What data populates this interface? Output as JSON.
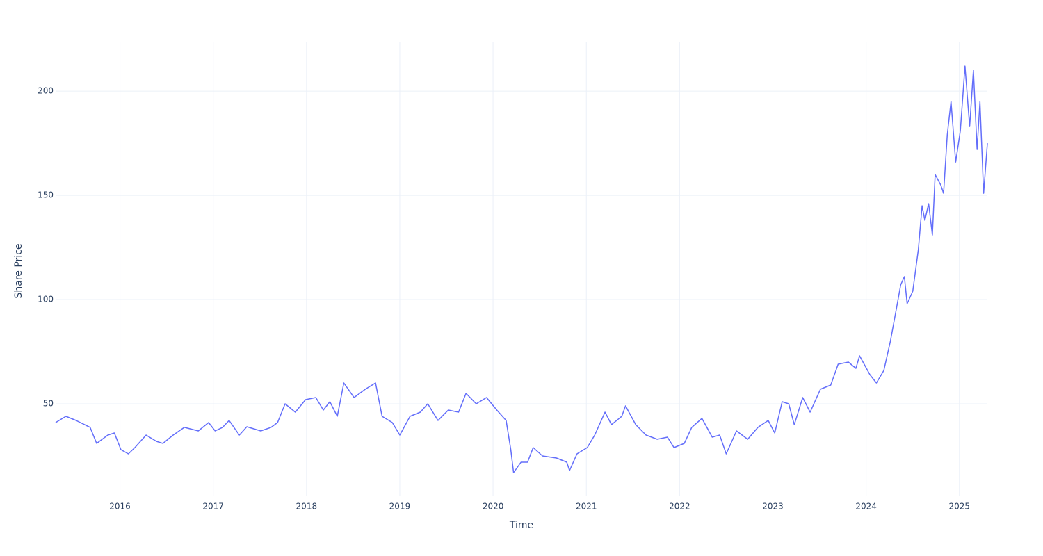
{
  "chart_data": {
    "type": "line",
    "x_label": "Time",
    "y_label": "Share Price",
    "x": [
      2015.31,
      2015.42,
      2015.53,
      2015.68,
      2015.75,
      2015.87,
      2015.94,
      2016.01,
      2016.09,
      2016.16,
      2016.28,
      2016.39,
      2016.46,
      2016.57,
      2016.69,
      2016.84,
      2016.95,
      2017.02,
      2017.1,
      2017.17,
      2017.28,
      2017.36,
      2017.51,
      2017.62,
      2017.69,
      2017.77,
      2017.88,
      2017.99,
      2018.1,
      2018.18,
      2018.25,
      2018.33,
      2018.4,
      2018.51,
      2018.63,
      2018.74,
      2018.81,
      2018.92,
      2019.0,
      2019.11,
      2019.22,
      2019.3,
      2019.41,
      2019.52,
      2019.63,
      2019.71,
      2019.82,
      2019.93,
      2020.04,
      2020.14,
      2020.19,
      2020.22,
      2020.3,
      2020.37,
      2020.43,
      2020.53,
      2020.68,
      2020.79,
      2020.82,
      2020.9,
      2021.01,
      2021.09,
      2021.2,
      2021.27,
      2021.38,
      2021.42,
      2021.53,
      2021.64,
      2021.76,
      2021.87,
      2021.94,
      2022.05,
      2022.13,
      2022.24,
      2022.35,
      2022.43,
      2022.5,
      2022.61,
      2022.73,
      2022.84,
      2022.95,
      2023.02,
      2023.1,
      2023.17,
      2023.23,
      2023.32,
      2023.4,
      2023.51,
      2023.62,
      2023.7,
      2023.81,
      2023.89,
      2023.93,
      2024.04,
      2024.11,
      2024.19,
      2024.26,
      2024.33,
      2024.37,
      2024.41,
      2024.44,
      2024.5,
      2024.56,
      2024.6,
      2024.63,
      2024.67,
      2024.71,
      2024.74,
      2024.8,
      2024.83,
      2024.87,
      2024.91,
      2024.96,
      2025.01,
      2025.06,
      2025.11,
      2025.15,
      2025.19,
      2025.22,
      2025.26,
      2025.3
    ],
    "series": [
      {
        "color": "#636efa",
        "values": [
          41,
          44,
          42,
          38.7,
          31,
          35,
          36,
          28,
          26,
          29,
          35,
          32,
          31,
          35,
          38.7,
          37,
          41,
          37,
          38.7,
          42,
          35,
          39,
          37,
          38.7,
          41,
          50,
          46,
          52,
          53,
          47,
          51,
          44,
          60,
          53,
          57,
          60,
          44,
          41,
          35,
          44,
          46,
          50,
          42,
          47,
          46,
          55,
          50,
          53,
          47,
          42,
          28,
          17,
          22,
          22,
          29,
          25,
          24,
          22,
          18,
          26,
          29,
          35,
          46,
          40,
          44,
          49,
          40,
          35,
          33,
          34,
          29,
          31,
          38.7,
          43,
          34,
          35,
          26,
          37,
          33,
          38.7,
          42,
          36,
          51,
          50,
          40,
          53,
          46,
          57,
          59,
          69,
          70,
          67,
          73,
          64,
          60,
          66,
          80,
          97,
          107,
          111,
          98,
          104,
          124,
          145,
          138,
          146,
          131,
          160,
          155,
          151,
          179,
          195,
          166,
          181,
          212,
          183,
          210,
          172,
          195,
          151,
          175
        ]
      }
    ],
    "xlim": [
      2015.31,
      2025.3
    ],
    "xticks": [
      2016,
      2017,
      2018,
      2019,
      2020,
      2021,
      2022,
      2023,
      2024,
      2025
    ],
    "ylim": [
      6,
      223.7
    ],
    "yticks": [
      50,
      100,
      150,
      200
    ],
    "grid": true
  }
}
